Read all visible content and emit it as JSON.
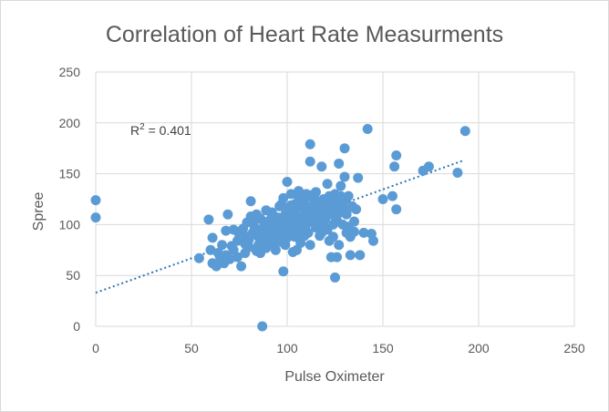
{
  "chart_data": {
    "type": "scatter",
    "title": "Correlation of Heart Rate Measurments",
    "xlabel": "Pulse Oximeter",
    "ylabel": "Spree",
    "xlim": [
      0,
      250
    ],
    "ylim": [
      0,
      250
    ],
    "xticks": [
      0,
      50,
      100,
      150,
      200,
      250
    ],
    "yticks": [
      0,
      50,
      100,
      150,
      200,
      250
    ],
    "grid": true,
    "legend": "none",
    "marker_color": "#5b9bd5",
    "trendline": {
      "type": "linear",
      "style": "dotted",
      "color": "#2e75b6",
      "from": [
        0,
        33
      ],
      "to": [
        192,
        163
      ],
      "label_prefix": "R",
      "label_sup": "2",
      "label_value": " = 0.401"
    },
    "series": [
      {
        "points": [
          [
            0,
            124
          ],
          [
            0,
            107
          ],
          [
            87,
            0
          ],
          [
            54,
            67
          ],
          [
            59,
            105
          ],
          [
            61,
            87
          ],
          [
            61,
            62
          ],
          [
            63,
            59
          ],
          [
            64,
            72
          ],
          [
            66,
            80
          ],
          [
            67,
            62
          ],
          [
            68,
            94
          ],
          [
            69,
            110
          ],
          [
            70,
            66
          ],
          [
            72,
            75
          ],
          [
            74,
            84
          ],
          [
            74,
            68
          ],
          [
            75,
            90
          ],
          [
            76,
            59
          ],
          [
            77,
            96
          ],
          [
            78,
            72
          ],
          [
            79,
            102
          ],
          [
            80,
            85
          ],
          [
            80,
            78
          ],
          [
            81,
            123
          ],
          [
            81,
            108
          ],
          [
            82,
            92
          ],
          [
            83,
            97
          ],
          [
            84,
            74
          ],
          [
            84,
            110
          ],
          [
            85,
            88
          ],
          [
            85,
            80
          ],
          [
            86,
            106
          ],
          [
            87,
            95
          ],
          [
            87,
            80
          ],
          [
            88,
            100
          ],
          [
            88,
            85
          ],
          [
            89,
            77
          ],
          [
            90,
            92
          ],
          [
            90,
            103
          ],
          [
            91,
            87
          ],
          [
            91,
            95
          ],
          [
            92,
            108
          ],
          [
            92,
            80
          ],
          [
            93,
            98
          ],
          [
            93,
            90
          ],
          [
            94,
            84
          ],
          [
            94,
            102
          ],
          [
            95,
            93
          ],
          [
            95,
            107
          ],
          [
            96,
            88
          ],
          [
            96,
            118
          ],
          [
            97,
            96
          ],
          [
            97,
            83
          ],
          [
            98,
            104
          ],
          [
            98,
            54
          ],
          [
            98,
            126
          ],
          [
            99,
            110
          ],
          [
            99,
            92
          ],
          [
            100,
            100
          ],
          [
            100,
            142
          ],
          [
            100,
            87
          ],
          [
            101,
            115
          ],
          [
            101,
            97
          ],
          [
            102,
            108
          ],
          [
            102,
            130
          ],
          [
            102,
            92
          ],
          [
            103,
            102
          ],
          [
            103,
            95
          ],
          [
            104,
            120
          ],
          [
            104,
            88
          ],
          [
            104,
            112
          ],
          [
            105,
            98
          ],
          [
            105,
            107
          ],
          [
            105,
            75
          ],
          [
            106,
            125
          ],
          [
            106,
            100
          ],
          [
            106,
            133
          ],
          [
            107,
            104
          ],
          [
            107,
            92
          ],
          [
            108,
            117
          ],
          [
            108,
            108
          ],
          [
            108,
            95
          ],
          [
            109,
            120
          ],
          [
            109,
            125
          ],
          [
            110,
            100
          ],
          [
            110,
            130
          ],
          [
            110,
            112
          ],
          [
            111,
            92
          ],
          [
            111,
            105
          ],
          [
            112,
            179
          ],
          [
            112,
            162
          ],
          [
            112,
            80
          ],
          [
            113,
            118
          ],
          [
            113,
            110
          ],
          [
            114,
            124
          ],
          [
            114,
            102
          ],
          [
            115,
            97
          ],
          [
            115,
            132
          ],
          [
            116,
            105
          ],
          [
            116,
            114
          ],
          [
            117,
            89
          ],
          [
            117,
            120
          ],
          [
            118,
            157
          ],
          [
            118,
            110
          ],
          [
            119,
            125
          ],
          [
            119,
            100
          ],
          [
            120,
            118
          ],
          [
            120,
            106
          ],
          [
            121,
            140
          ],
          [
            121,
            95
          ],
          [
            121,
            110
          ],
          [
            122,
            84
          ],
          [
            122,
            128
          ],
          [
            123,
            116
          ],
          [
            123,
            68
          ],
          [
            124,
            122
          ],
          [
            124,
            100
          ],
          [
            124,
            88
          ],
          [
            125,
            108
          ],
          [
            125,
            130
          ],
          [
            125,
            48
          ],
          [
            126,
            115
          ],
          [
            126,
            68
          ],
          [
            127,
            122
          ],
          [
            127,
            160
          ],
          [
            127,
            80
          ],
          [
            128,
            128
          ],
          [
            128,
            112
          ],
          [
            129,
            118
          ],
          [
            129,
            100
          ],
          [
            130,
            175
          ],
          [
            130,
            147
          ],
          [
            130,
            124
          ],
          [
            131,
            110
          ],
          [
            131,
            92
          ],
          [
            132,
            128
          ],
          [
            132,
            98
          ],
          [
            133,
            70
          ],
          [
            133,
            88
          ],
          [
            134,
            118
          ],
          [
            135,
            103
          ],
          [
            136,
            115
          ],
          [
            137,
            146
          ],
          [
            138,
            70
          ],
          [
            140,
            92
          ],
          [
            142,
            194
          ],
          [
            144,
            91
          ],
          [
            145,
            84
          ],
          [
            150,
            125
          ],
          [
            155,
            128
          ],
          [
            156,
            157
          ],
          [
            157,
            115
          ],
          [
            157,
            168
          ],
          [
            171,
            153
          ],
          [
            174,
            157
          ],
          [
            189,
            151
          ],
          [
            193,
            192
          ],
          [
            60,
            75
          ],
          [
            65,
            68
          ],
          [
            72,
            95
          ],
          [
            79,
            88
          ],
          [
            86,
            72
          ],
          [
            92,
            112
          ],
          [
            99,
            80
          ],
          [
            107,
            82
          ],
          [
            115,
            124
          ],
          [
            120,
            96
          ],
          [
            126,
            104
          ],
          [
            103,
            73
          ],
          [
            78,
            81
          ],
          [
            83,
            104
          ],
          [
            89,
            114
          ],
          [
            94,
            75
          ],
          [
            97,
            120
          ],
          [
            102,
            119
          ],
          [
            109,
            89
          ],
          [
            113,
            129
          ],
          [
            118,
            92
          ],
          [
            122,
            118
          ],
          [
            128,
            138
          ],
          [
            131,
            112
          ],
          [
            135,
            93
          ],
          [
            100,
            112
          ],
          [
            96,
            105
          ],
          [
            90,
            81
          ],
          [
            84,
            90
          ],
          [
            76,
            94
          ],
          [
            71,
            79
          ],
          [
            68,
            70
          ]
        ]
      }
    ]
  }
}
